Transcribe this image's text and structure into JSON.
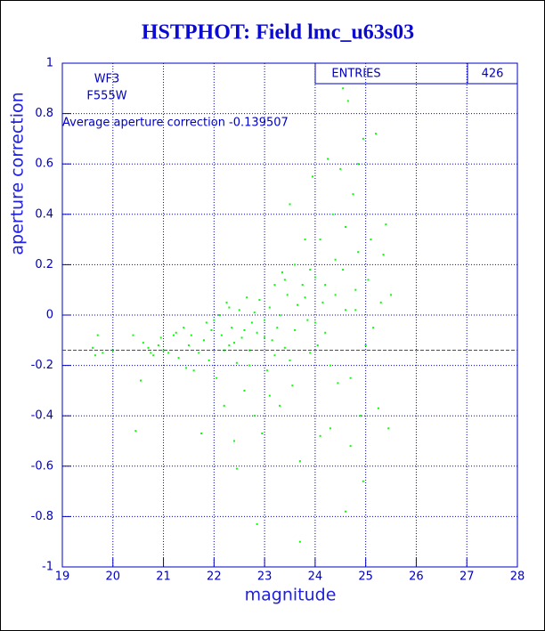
{
  "chart_data": {
    "type": "scatter",
    "title": "HSTPHOT: Field lmc_u63s03",
    "x_label": "magnitude",
    "y_label": "aperture correction",
    "entries_label": "ENTRIES",
    "entries": 426,
    "annotations": [
      "WF3",
      "F555W"
    ],
    "average_label": "Average aperture correction -0.139507",
    "average": -0.139507,
    "average_color": "#ff0000",
    "color": "#00ff00",
    "grid": true,
    "xlim": [
      19,
      28
    ],
    "xticks": [
      19,
      20,
      21,
      22,
      23,
      24,
      25,
      26,
      27,
      28
    ],
    "ylim": [
      -1,
      1
    ],
    "yticks": [
      -1,
      -0.8,
      -0.6,
      -0.4,
      -0.2,
      0,
      0.2,
      0.4,
      0.6,
      0.8,
      1
    ],
    "x": [
      19.7,
      19.6,
      19.65,
      19.8,
      20.0,
      20.4,
      20.45,
      20.55,
      20.6,
      20.7,
      20.75,
      20.8,
      20.9,
      20.95,
      21.0,
      21.1,
      21.2,
      21.25,
      21.3,
      21.4,
      21.45,
      21.5,
      21.55,
      21.6,
      21.7,
      21.75,
      21.8,
      21.85,
      21.9,
      21.95,
      22.0,
      22.05,
      22.1,
      22.15,
      22.2,
      22.25,
      22.3,
      22.35,
      22.4,
      22.45,
      22.5,
      22.55,
      22.6,
      22.65,
      22.7,
      22.75,
      22.8,
      22.85,
      22.9,
      22.95,
      23.0,
      23.05,
      23.1,
      23.15,
      23.2,
      23.25,
      23.3,
      23.35,
      23.4,
      23.45,
      23.5,
      23.55,
      23.6,
      23.65,
      23.7,
      23.75,
      23.8,
      23.85,
      23.9,
      23.95,
      24.0,
      24.05,
      24.1,
      24.15,
      24.2,
      24.25,
      24.3,
      24.35,
      24.4,
      24.45,
      24.5,
      24.55,
      24.6,
      24.65,
      24.7,
      24.75,
      24.8,
      24.85,
      24.9,
      24.95,
      25.0,
      25.1,
      25.2,
      25.25,
      25.3,
      25.35,
      25.4,
      25.5,
      25.45,
      24.6,
      24.95,
      23.7,
      22.85,
      22.45,
      24.55,
      22.3,
      22.6,
      22.8,
      23.0,
      23.2,
      23.4,
      23.6,
      23.8,
      24.0,
      24.2,
      24.4,
      24.6,
      24.8,
      22.2,
      22.4,
      22.7,
      23.1,
      23.3,
      23.5,
      23.9,
      24.3,
      24.1,
      24.7,
      25.15,
      25.05,
      24.85
    ],
    "values": [
      -0.08,
      -0.13,
      -0.16,
      -0.15,
      -0.14,
      -0.08,
      -0.46,
      -0.26,
      -0.11,
      -0.13,
      -0.15,
      -0.16,
      -0.12,
      -0.09,
      -0.14,
      -0.15,
      -0.08,
      -0.07,
      -0.17,
      -0.05,
      -0.21,
      -0.12,
      -0.08,
      -0.22,
      -0.15,
      -0.47,
      -0.1,
      -0.03,
      -0.18,
      -0.06,
      -0.02,
      -0.25,
      0.0,
      -0.08,
      -0.36,
      0.05,
      -0.12,
      -0.05,
      -0.5,
      -0.19,
      0.02,
      -0.09,
      -0.3,
      0.07,
      -0.14,
      -0.03,
      -0.4,
      -0.07,
      0.06,
      -0.47,
      -0.02,
      -0.22,
      0.03,
      -0.1,
      0.12,
      -0.05,
      0.0,
      0.17,
      -0.13,
      0.08,
      0.44,
      -0.28,
      0.2,
      0.04,
      -0.58,
      0.12,
      0.3,
      -0.02,
      0.18,
      0.55,
      0.15,
      -0.12,
      0.3,
      0.05,
      0.12,
      0.62,
      -0.2,
      0.4,
      0.08,
      -0.27,
      0.58,
      0.18,
      0.35,
      0.85,
      -0.25,
      0.48,
      0.1,
      0.25,
      -0.4,
      0.7,
      -0.12,
      0.3,
      0.72,
      -0.37,
      0.05,
      0.24,
      0.36,
      0.08,
      -0.45,
      -0.78,
      -0.66,
      -0.9,
      -0.83,
      -0.61,
      0.9,
      0.03,
      -0.06,
      0.01,
      -0.09,
      -0.16,
      0.14,
      -0.06,
      0.07,
      -0.03,
      -0.07,
      0.22,
      0.02,
      0.02,
      -0.14,
      -0.11,
      -0.2,
      -0.32,
      -0.36,
      -0.18,
      -0.15,
      -0.45,
      -0.48,
      -0.52,
      -0.05,
      0.14,
      0.6
    ]
  }
}
